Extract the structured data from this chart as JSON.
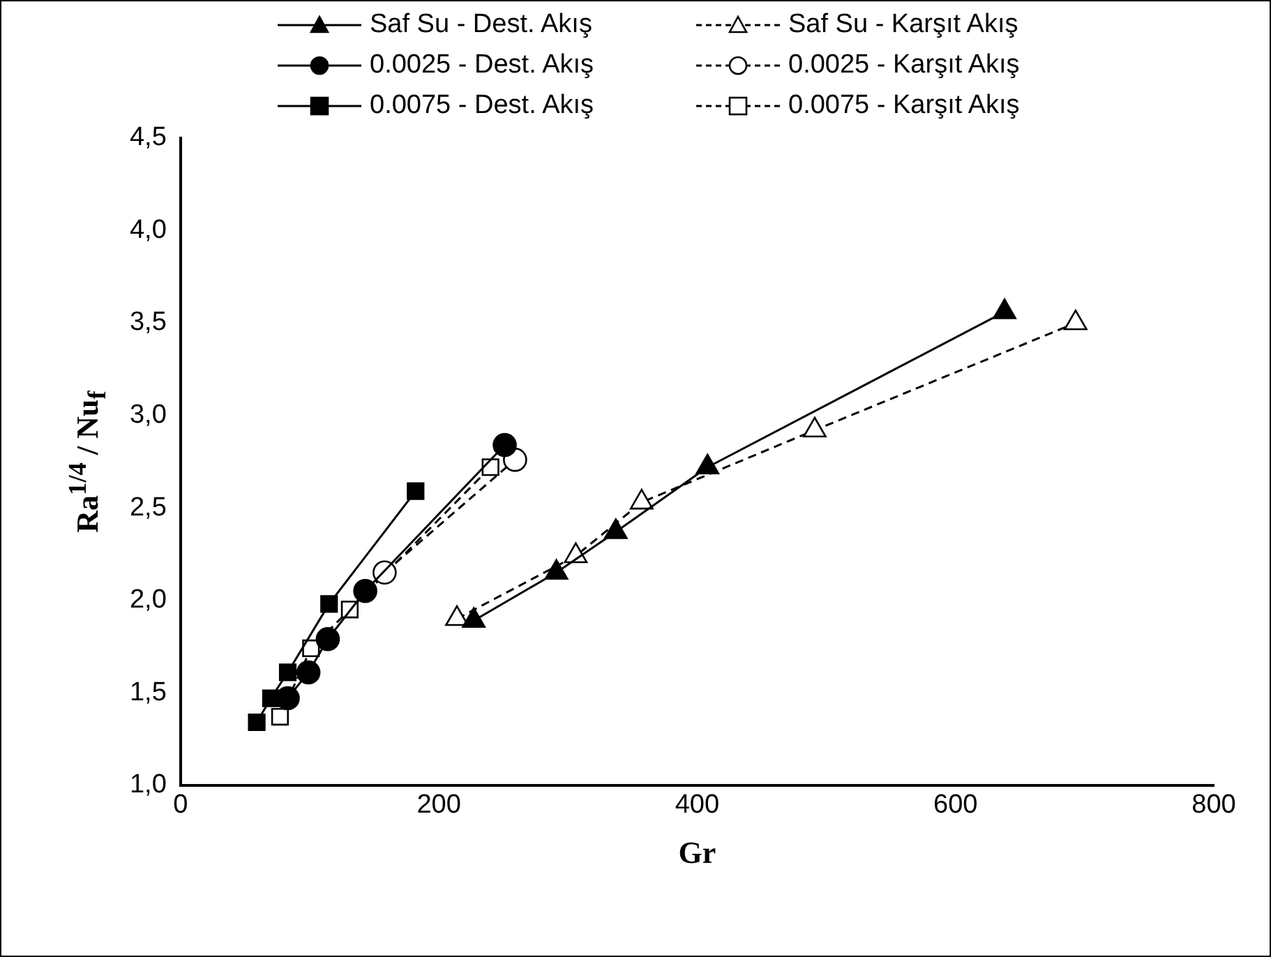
{
  "chart_data": {
    "type": "line",
    "xlabel": "Gr",
    "ylabel": "Ra$^{1/4}$ / Nu$_{f}$",
    "xlim": [
      0,
      800
    ],
    "xticks": [
      0,
      200,
      400,
      600,
      800
    ],
    "ylim": [
      1.0,
      4.5
    ],
    "yticks": [
      {
        "value": 1.0,
        "label": "1,0"
      },
      {
        "value": 1.5,
        "label": "1,5"
      },
      {
        "value": 2.0,
        "label": "2,0"
      },
      {
        "value": 2.5,
        "label": "2,5"
      },
      {
        "value": 3.0,
        "label": "3,0"
      },
      {
        "value": 3.5,
        "label": "3,5"
      },
      {
        "value": 4.0,
        "label": "4,0"
      },
      {
        "value": 4.5,
        "label": "4,5"
      }
    ],
    "grid": false,
    "legend": "top",
    "series": [
      {
        "name": "Saf Su - Dest. Akış",
        "color": "#000000",
        "marker": "triangle",
        "line_style": "solid",
        "x": [
          227,
          291,
          337,
          408,
          638
        ],
        "values": [
          1.89,
          2.15,
          2.37,
          2.72,
          3.56
        ]
      },
      {
        "name": "Saf Su - Karşıt Akış",
        "color": "#000000",
        "marker": "triangle",
        "line_style": "dashed",
        "x": [
          214,
          306,
          357,
          491,
          693
        ],
        "values": [
          1.9,
          2.24,
          2.53,
          2.92,
          3.5
        ]
      },
      {
        "name": "0.0025 - Dest. Akış",
        "color": "#000000",
        "marker": "circle",
        "line_style": "solid",
        "x": [
          83,
          99,
          114,
          143,
          251
        ],
        "values": [
          1.47,
          1.61,
          1.79,
          2.05,
          2.84
        ]
      },
      {
        "name": "0.0025 - Karşıt Akış",
        "color": "#000000",
        "marker": "circle",
        "line_style": "dashed",
        "x": [
          158,
          259
        ],
        "values": [
          2.15,
          2.76
        ]
      },
      {
        "name": "0.0075 - Dest. Akış",
        "color": "#000000",
        "marker": "square",
        "line_style": "solid",
        "x": [
          59,
          70,
          83,
          115,
          182
        ],
        "values": [
          1.34,
          1.47,
          1.61,
          1.98,
          2.59
        ]
      },
      {
        "name": "0.0075 - Karşıt Akış",
        "color": "#000000",
        "marker": "square",
        "line_style": "dashed",
        "x": [
          77,
          101,
          131,
          240
        ],
        "values": [
          1.37,
          1.74,
          1.95,
          2.72
        ]
      }
    ]
  }
}
